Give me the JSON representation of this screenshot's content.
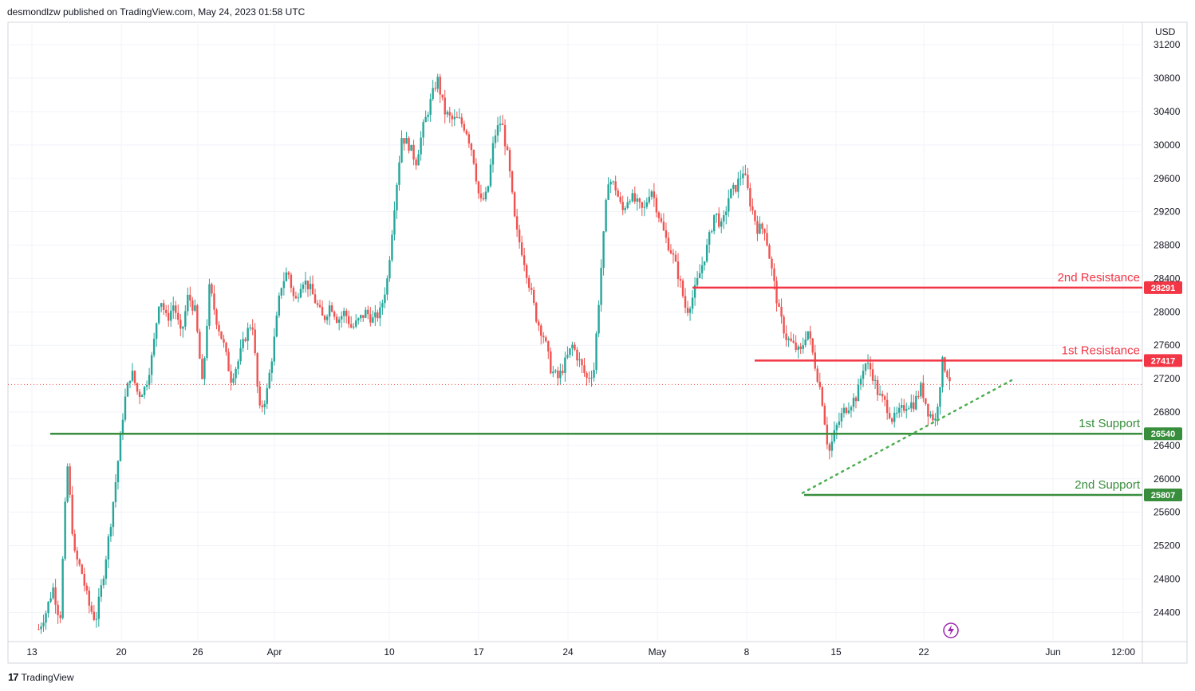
{
  "header": {
    "text": "desmondlzw published on TradingView.com, May 24, 2023 01:58 UTC"
  },
  "footer": {
    "logo": "17",
    "brand": "TradingView"
  },
  "colors": {
    "up": "#26a69a",
    "down": "#ef5350",
    "resistance": "#f23645",
    "support": "#388e3c",
    "grid": "#f0f3fa",
    "axis": "#d1d4dc",
    "trend": "#4caf50",
    "current": "#ef5350"
  },
  "chart_data": {
    "type": "candlestick",
    "currency": "USD",
    "y_ticks": [
      31200,
      30800,
      30400,
      30000,
      29600,
      29200,
      28800,
      28400,
      28000,
      27600,
      27200,
      26800,
      26400,
      26000,
      25600,
      25200,
      24800,
      24400
    ],
    "ylim": [
      24050,
      31450
    ],
    "x_tick_labels": [
      "13",
      "20",
      "26",
      "Apr",
      "10",
      "17",
      "24",
      "May",
      "8",
      "15",
      "22",
      "Jun",
      "12:00"
    ],
    "current_price": 27130,
    "levels": [
      {
        "name": "2nd Resistance",
        "value": 28291,
        "kind": "resistance"
      },
      {
        "name": "1st Resistance",
        "value": 27417,
        "kind": "resistance"
      },
      {
        "name": "1st Support",
        "value": 26540,
        "kind": "support"
      },
      {
        "name": "2nd Support",
        "value": 25807,
        "kind": "support"
      }
    ],
    "trendline": {
      "from_price": 25830,
      "to_price": 27180,
      "style": "dotted"
    },
    "price_path": [
      24200,
      24400,
      24700,
      24300,
      26200,
      25100,
      24900,
      24500,
      24300,
      24800,
      25400,
      26100,
      26900,
      27300,
      27000,
      27100,
      27500,
      28200,
      27900,
      28100,
      27700,
      28200,
      28000,
      27100,
      28300,
      27900,
      27600,
      27200,
      27400,
      27700,
      27900,
      26800,
      27000,
      27600,
      28300,
      28500,
      28100,
      28400,
      28300,
      28100,
      27900,
      28100,
      27900,
      28000,
      27800,
      27900,
      28000,
      27900,
      28000,
      28400,
      29300,
      30100,
      30000,
      29800,
      30200,
      30500,
      30800,
      30400,
      30300,
      30300,
      30200,
      29900,
      29300,
      29400,
      30100,
      30300,
      29800,
      29000,
      28700,
      28300,
      27900,
      27700,
      27300,
      27200,
      27400,
      27600,
      27400,
      27200,
      27300,
      28500,
      29600,
      29500,
      29200,
      29400,
      29300,
      29200,
      29500,
      29200,
      28900,
      28700,
      28400,
      28000,
      28200,
      28500,
      28800,
      29200,
      29000,
      29400,
      29500,
      29700,
      29300,
      29000,
      29000,
      28500,
      28000,
      27700,
      27600,
      27500,
      27800,
      27400,
      27000,
      26300,
      26600,
      26800,
      26900,
      27000,
      27400,
      27300,
      27000,
      26900,
      26700,
      26800,
      26900,
      26900,
      27100,
      26800,
      26700,
      27400,
      27200
    ]
  }
}
